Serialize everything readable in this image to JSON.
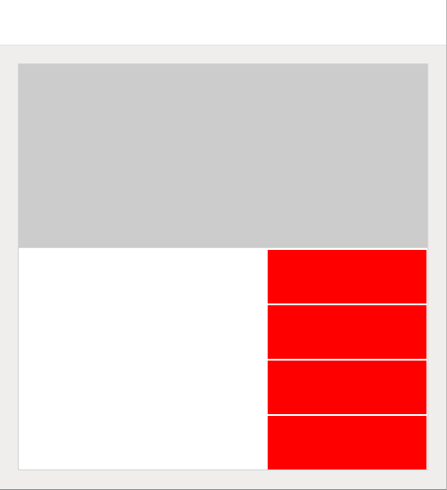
{
  "window": {
    "title": ""
  },
  "layout": {
    "top_panel": {},
    "left_panel": {},
    "buttons": [
      {
        "label": ""
      },
      {
        "label": ""
      },
      {
        "label": ""
      },
      {
        "label": ""
      }
    ]
  },
  "colors": {
    "titlebar": "#ffffff",
    "background": "#efeeec",
    "top_panel": "#cccccc",
    "left_panel": "#ffffff",
    "buttons": "#ff0000"
  }
}
